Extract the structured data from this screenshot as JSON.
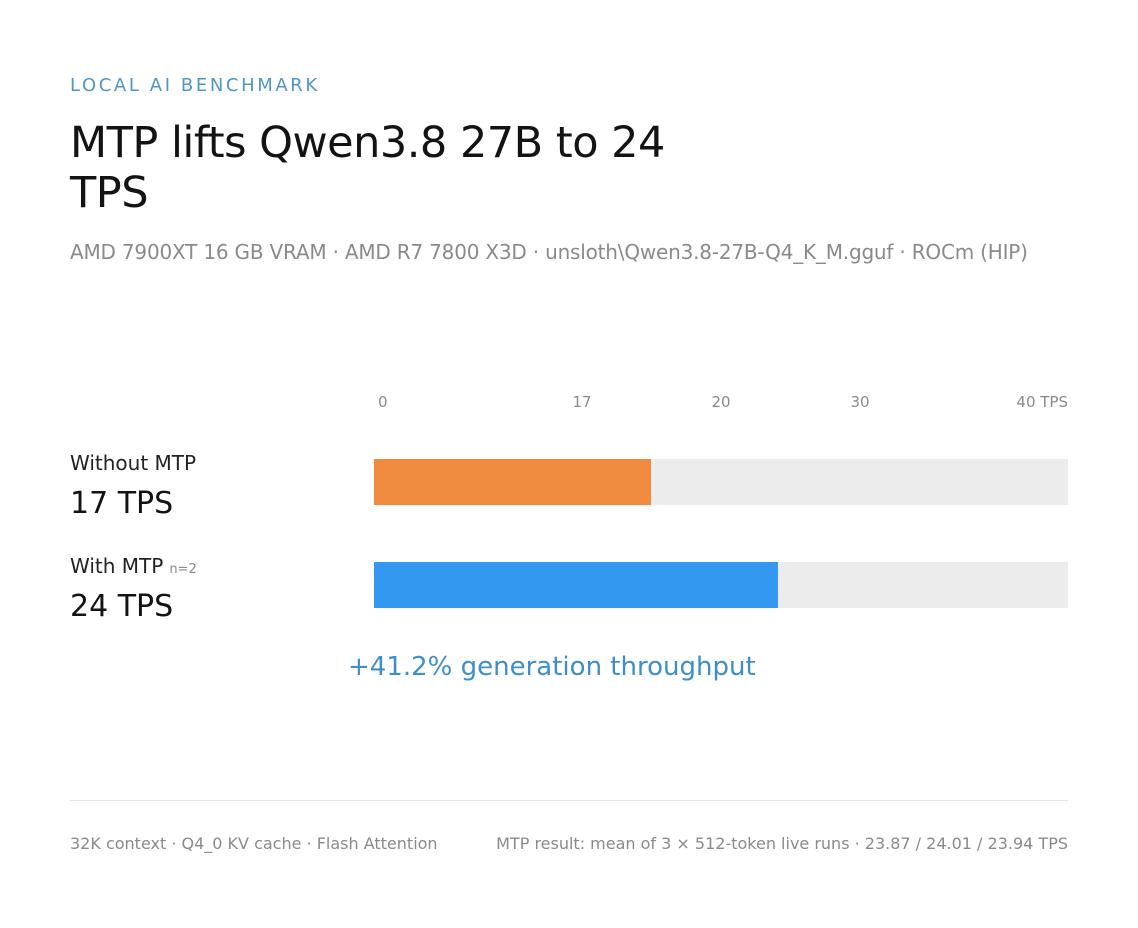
{
  "header": {
    "eyebrow": "LOCAL AI BENCHMARK",
    "title": "MTP lifts Qwen3.8 27B to 24 TPS",
    "subtitle": "AMD 7900XT 16 GB VRAM · AMD R7 7800 X3D · unsloth\\Qwen3.8-27B-Q4_K_M.gguf · ROCm (HIP)"
  },
  "rows": [
    {
      "label": "Without MTP",
      "note": "",
      "value_text": "17 TPS"
    },
    {
      "label": "With MTP",
      "note": "n=2",
      "value_text": "24 TPS"
    }
  ],
  "summary": "+41.2% generation throughput",
  "footer": {
    "left": "32K context · Q4_0 KV cache · Flash Attention",
    "right": "MTP result: mean of 3 × 512-token live runs · 23.87 / 24.01 / 23.94 TPS"
  },
  "colors": {
    "without": "#ef8a3f",
    "with": "#3399f0",
    "track": "#ececec",
    "tick": "#8a8a8a"
  },
  "chart_data": {
    "type": "bar",
    "orientation": "horizontal",
    "categories": [
      "Without MTP",
      "With MTP"
    ],
    "values": [
      17,
      24
    ],
    "xlim": [
      0,
      40
    ],
    "ticks": [
      {
        "value": 0,
        "label": "0"
      },
      {
        "value": 17,
        "label": "17"
      },
      {
        "value": 20,
        "label": "20"
      },
      {
        "value": 30,
        "label": "30"
      },
      {
        "value": 40,
        "label": "40 TPS"
      }
    ],
    "grid": false,
    "legend": "none"
  }
}
